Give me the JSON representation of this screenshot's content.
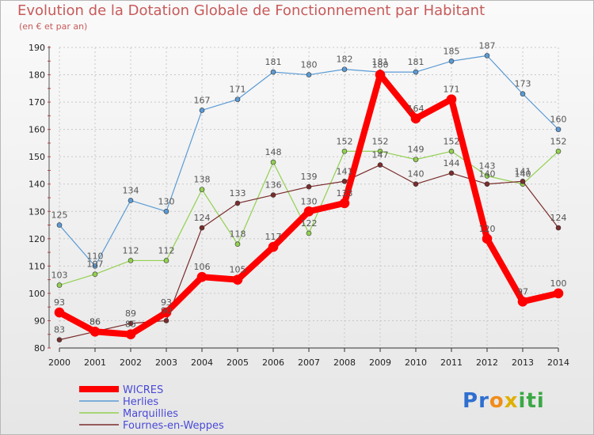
{
  "chart_data": {
    "type": "line",
    "title": "Evolution de la Dotation Globale de Fonctionnement par Habitant",
    "subtitle": "(en € et par an)",
    "xlabel": "",
    "ylabel": "",
    "x": [
      "2000",
      "2001",
      "2002",
      "2003",
      "2004",
      "2005",
      "2006",
      "2007",
      "2008",
      "2009",
      "2010",
      "2011",
      "2012",
      "2013",
      "2014"
    ],
    "ylim": [
      80,
      190
    ],
    "yticks": [
      80,
      90,
      100,
      110,
      120,
      130,
      140,
      150,
      160,
      170,
      180,
      190
    ],
    "grid": true,
    "legend": "bottom-left",
    "series": [
      {
        "name": "WICRES",
        "color": "#ff0000",
        "values": [
          93,
          86,
          85,
          93,
          106,
          105,
          117,
          130,
          133,
          180,
          164,
          171,
          120,
          97,
          100
        ]
      },
      {
        "name": "Herlies",
        "color": "#5b9bd5",
        "values": [
          125,
          110,
          134,
          130,
          167,
          171,
          181,
          180,
          182,
          181,
          181,
          185,
          187,
          173,
          160
        ]
      },
      {
        "name": "Marquillies",
        "color": "#92d050",
        "values": [
          103,
          107,
          112,
          112,
          138,
          118,
          148,
          122,
          152,
          152,
          149,
          152,
          143,
          140,
          152
        ]
      },
      {
        "name": "Fournes-en-Weppes",
        "color": "#7b2c2c",
        "values": [
          83,
          86,
          89,
          90,
          124,
          133,
          136,
          139,
          141,
          147,
          140,
          144,
          140,
          141,
          124
        ]
      }
    ]
  },
  "logo": {
    "letters": [
      {
        "ch": "P",
        "color": "#2f6fd0"
      },
      {
        "ch": "r",
        "color": "#2f6fd0"
      },
      {
        "ch": "o",
        "color": "#f08c1a"
      },
      {
        "ch": "x",
        "color": "#e0b000"
      },
      {
        "ch": "i",
        "color": "#3aa845"
      },
      {
        "ch": "t",
        "color": "#3aa845"
      },
      {
        "ch": "i",
        "color": "#3aa845"
      }
    ]
  }
}
